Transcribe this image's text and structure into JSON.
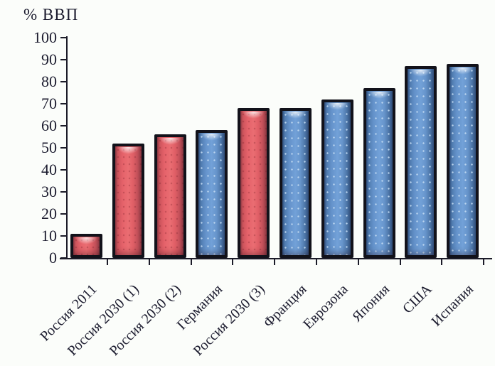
{
  "chart_data": {
    "type": "bar",
    "title": "",
    "ylabel": "% ВВП",
    "xlabel": "",
    "ylim": [
      0,
      100
    ],
    "ytick_step": 10,
    "ytick_labels": [
      "0",
      "10",
      "20",
      "30",
      "40",
      "50",
      "60",
      "70",
      "80",
      "90",
      "100"
    ],
    "categories": [
      "Россия 2011",
      "Россия 2030 (1)",
      "Россия 2030 (2)",
      "Германия",
      "Россия 2030 (3)",
      "Франция",
      "Еврозона",
      "Япония",
      "США",
      "Испания"
    ],
    "values": [
      11,
      52,
      56,
      58,
      68,
      68,
      72,
      77,
      87,
      88
    ],
    "bar_color_keys": [
      "red",
      "red",
      "red",
      "blue",
      "red",
      "blue",
      "blue",
      "blue",
      "blue",
      "blue"
    ],
    "colors": {
      "red": "#e05f63",
      "blue": "#6794cb",
      "bar_border": "#12121a",
      "axis": "#1b1b28",
      "text": "#1b1b2e",
      "background": "#fbfdfa"
    },
    "grid": false,
    "legend": false,
    "category_label_rotation_deg": 45
  }
}
